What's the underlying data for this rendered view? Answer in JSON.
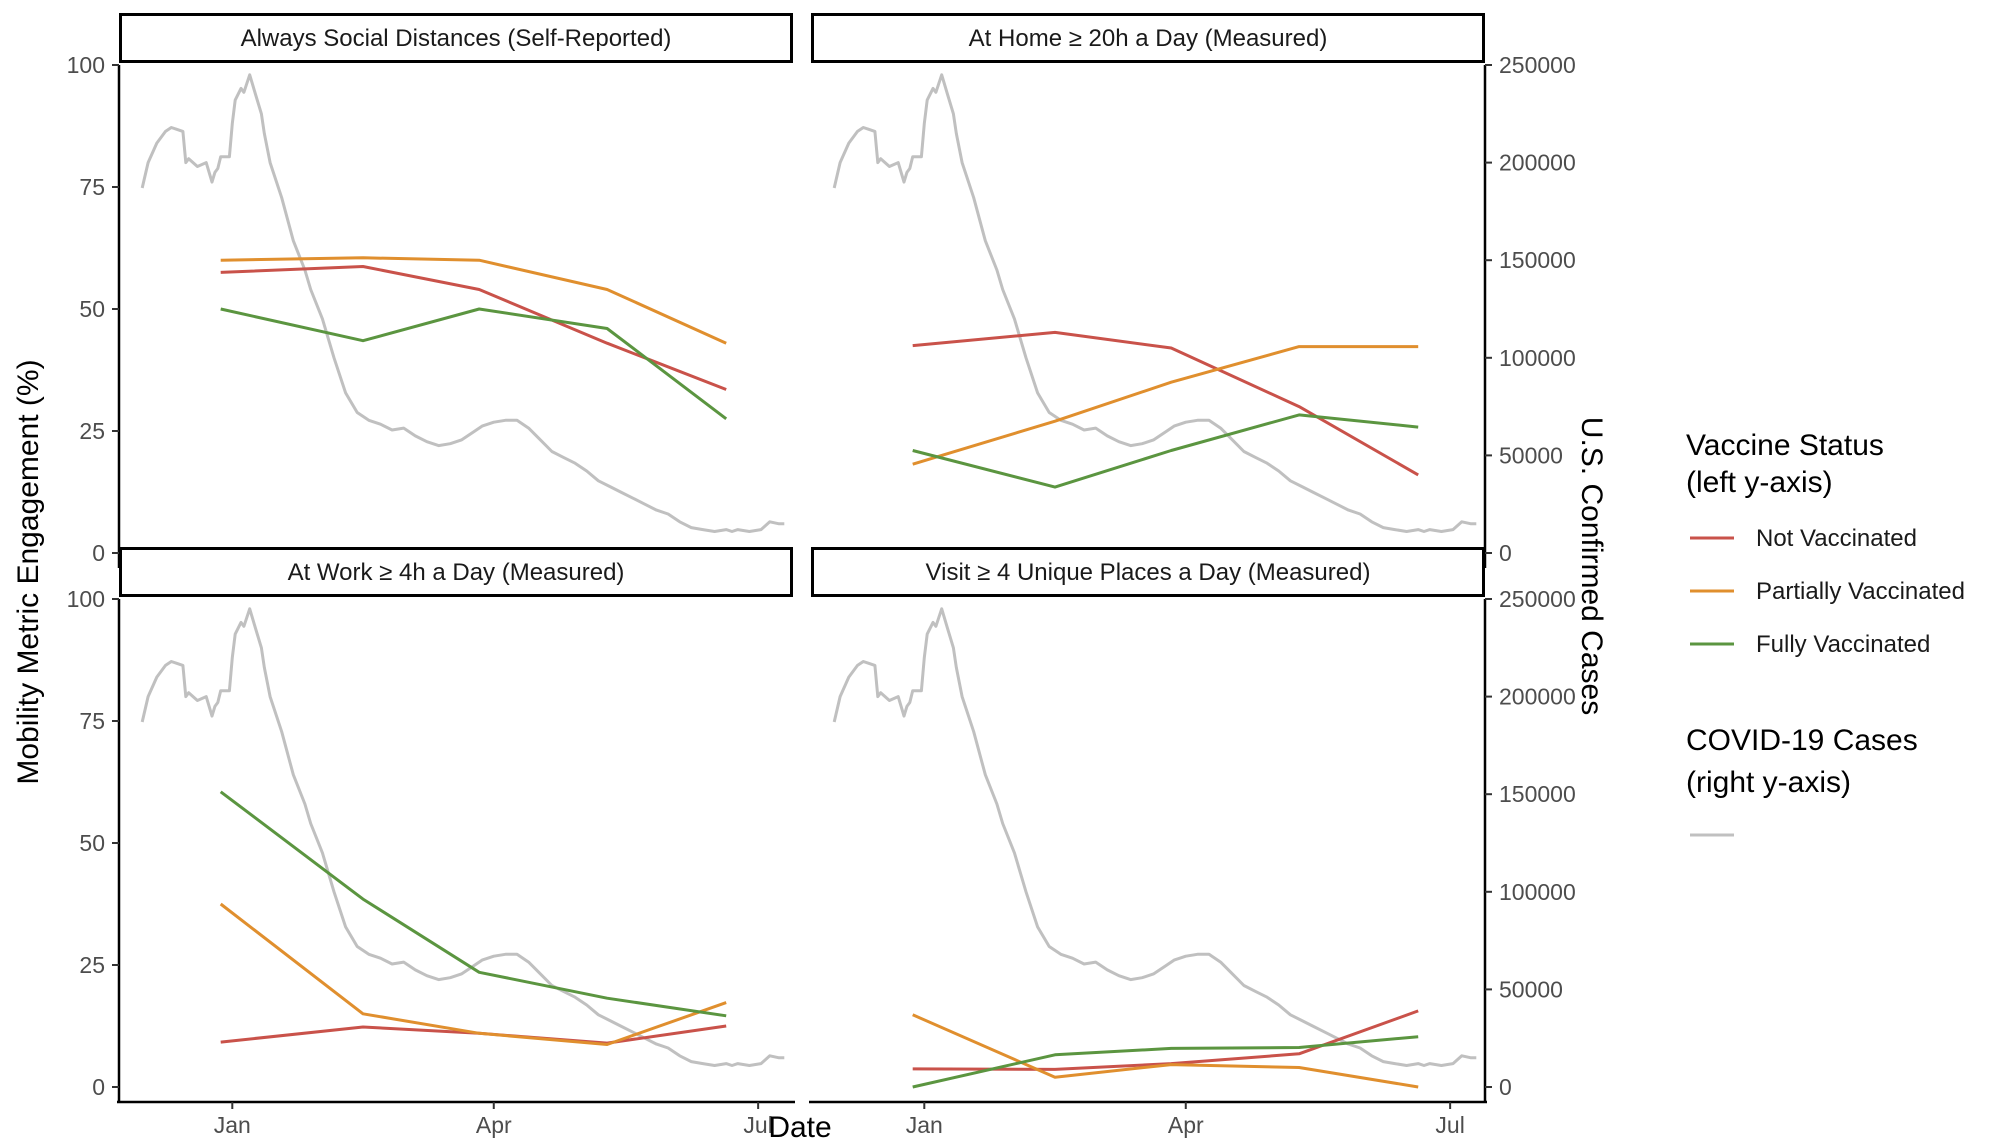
{
  "chart_data": {
    "type": "line",
    "xlabel": "Date",
    "ylabel": "Mobility Metric Engagement (%)",
    "y2label": "U.S. Confirmed Cases",
    "x_ticks": [
      "Jan",
      "Apr",
      "Jul"
    ],
    "x_tick_dates": [
      "2021-01-01",
      "2021-04-01",
      "2021-07-01"
    ],
    "xlim": [
      "2020-11-23",
      "2021-07-13"
    ],
    "ylim": [
      0,
      100
    ],
    "y_ticks": [
      0,
      25,
      50,
      75,
      100
    ],
    "y2lim": [
      0,
      250000
    ],
    "y2_ticks": [
      0,
      50000,
      100000,
      150000,
      200000,
      250000
    ],
    "grid": false,
    "legend_position": "right",
    "legend": {
      "vaccine_title_line1": "Vaccine Status",
      "vaccine_title_line2": "(left y-axis)",
      "cases_title_line1": "COVID-19 Cases",
      "cases_title_line2": "(right y-axis)",
      "items": [
        {
          "label": "Not Vaccinated",
          "color": "#C9524A"
        },
        {
          "label": "Partially Vaccinated",
          "color": "#E08F2E"
        },
        {
          "label": "Fully Vaccinated",
          "color": "#5B9540"
        }
      ],
      "cases_color": "#C0C0C0"
    },
    "cases_series": {
      "dates": [
        "2020-12-01",
        "2020-12-03",
        "2020-12-06",
        "2020-12-09",
        "2020-12-11",
        "2020-12-13",
        "2020-12-15",
        "2020-12-16",
        "2020-12-17",
        "2020-12-20",
        "2020-12-23",
        "2020-12-25",
        "2020-12-26",
        "2020-12-27",
        "2020-12-28",
        "2020-12-31",
        "2021-01-01",
        "2021-01-02",
        "2021-01-04",
        "2021-01-05",
        "2021-01-07",
        "2021-01-09",
        "2021-01-11",
        "2021-01-12",
        "2021-01-14",
        "2021-01-18",
        "2021-01-22",
        "2021-01-26",
        "2021-01-28",
        "2021-02-01",
        "2021-02-05",
        "2021-02-09",
        "2021-02-13",
        "2021-02-17",
        "2021-02-21",
        "2021-02-25",
        "2021-03-01",
        "2021-03-05",
        "2021-03-09",
        "2021-03-13",
        "2021-03-17",
        "2021-03-21",
        "2021-03-25",
        "2021-03-28",
        "2021-04-01",
        "2021-04-05",
        "2021-04-09",
        "2021-04-13",
        "2021-04-17",
        "2021-04-21",
        "2021-04-25",
        "2021-04-29",
        "2021-05-03",
        "2021-05-07",
        "2021-05-11",
        "2021-05-15",
        "2021-05-19",
        "2021-05-23",
        "2021-05-27",
        "2021-05-31",
        "2021-06-04",
        "2021-06-08",
        "2021-06-12",
        "2021-06-16",
        "2021-06-20",
        "2021-06-22",
        "2021-06-24",
        "2021-06-28",
        "2021-07-02",
        "2021-07-05",
        "2021-07-08",
        "2021-07-10"
      ],
      "values": [
        187000,
        200000,
        210000,
        216000,
        218000,
        217000,
        216000,
        200000,
        202000,
        198000,
        200000,
        190000,
        195000,
        197000,
        203000,
        203000,
        220000,
        232000,
        238000,
        236000,
        245000,
        235000,
        225000,
        215000,
        200000,
        182000,
        160000,
        145000,
        135000,
        120000,
        100000,
        82000,
        72000,
        68000,
        66000,
        63000,
        64000,
        60000,
        57000,
        55000,
        56000,
        58000,
        62000,
        65000,
        67000,
        68000,
        68000,
        64000,
        58000,
        52000,
        49000,
        46000,
        42000,
        37000,
        34000,
        31000,
        28000,
        25000,
        22000,
        20000,
        16000,
        13000,
        12000,
        11000,
        12000,
        11000,
        12000,
        11000,
        12000,
        16000,
        15000,
        15000
      ]
    },
    "panels": [
      {
        "title": "Always Social Distances (Self-Reported)",
        "dates": [
          "2020-12-28",
          "2021-02-15",
          "2021-03-27",
          "2021-05-10",
          "2021-06-20"
        ],
        "series": [
          {
            "name": "Not Vaccinated",
            "values": [
              57.5,
              58.7,
              54.0,
              43.0,
              33.5
            ]
          },
          {
            "name": "Partially Vaccinated",
            "values": [
              60.0,
              60.5,
              60.0,
              54.0,
              43.0
            ]
          },
          {
            "name": "Fully Vaccinated",
            "values": [
              50.0,
              43.5,
              50.0,
              46.0,
              27.5
            ]
          }
        ]
      },
      {
        "title": "At Home ≥ 20h a Day (Measured)",
        "dates": [
          "2020-12-28",
          "2021-02-15",
          "2021-03-27",
          "2021-05-10",
          "2021-06-20"
        ],
        "series": [
          {
            "name": "Not Vaccinated",
            "values": [
              42.5,
              45.2,
              42.0,
              30.0,
              16.0
            ]
          },
          {
            "name": "Partially Vaccinated",
            "values": [
              18.2,
              27.0,
              35.0,
              42.3,
              42.3
            ]
          },
          {
            "name": "Fully Vaccinated",
            "values": [
              21.0,
              13.5,
              21.0,
              28.3,
              25.8
            ]
          }
        ]
      },
      {
        "title": "At Work ≥ 4h a Day (Measured)",
        "dates": [
          "2020-12-28",
          "2021-02-15",
          "2021-03-27",
          "2021-05-10",
          "2021-06-20"
        ],
        "series": [
          {
            "name": "Not Vaccinated",
            "values": [
              9.2,
              12.3,
              11.0,
              9.0,
              12.5
            ]
          },
          {
            "name": "Partially Vaccinated",
            "values": [
              37.5,
              15.0,
              11.0,
              8.7,
              17.3
            ]
          },
          {
            "name": "Fully Vaccinated",
            "values": [
              60.5,
              38.5,
              23.5,
              18.2,
              14.6
            ]
          }
        ]
      },
      {
        "title": "Visit ≥ 4 Unique Places a Day (Measured)",
        "dates": [
          "2020-12-28",
          "2021-02-15",
          "2021-03-27",
          "2021-05-10",
          "2021-06-20"
        ],
        "series": [
          {
            "name": "Not Vaccinated",
            "values": [
              3.7,
              3.6,
              4.8,
              6.8,
              15.6
            ]
          },
          {
            "name": "Partially Vaccinated",
            "values": [
              14.8,
              2.0,
              4.6,
              4.0,
              0.0
            ]
          },
          {
            "name": "Fully Vaccinated",
            "values": [
              0.0,
              6.6,
              7.9,
              8.1,
              10.3
            ]
          }
        ]
      }
    ]
  }
}
